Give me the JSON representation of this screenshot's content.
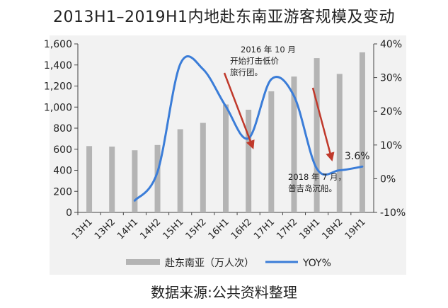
{
  "chart_data": {
    "type": "bar+line",
    "title": "2013H1–2019H1内地赴东南亚游客规模及变动",
    "categories": [
      "13H1",
      "13H2",
      "14H1",
      "14H2",
      "15H1",
      "15H2",
      "16H1",
      "16H2",
      "17H1",
      "17H2",
      "18H1",
      "18H2",
      "19H1"
    ],
    "series": [
      {
        "name": "赴东南亚（万人次）",
        "type": "bar",
        "axis": "left",
        "values": [
          630,
          625,
          590,
          640,
          790,
          850,
          1025,
          975,
          1150,
          1290,
          1465,
          1315,
          1520
        ]
      },
      {
        "name": "YOY%",
        "type": "line",
        "axis": "right",
        "values": [
          null,
          null,
          -6.5,
          2.0,
          34.0,
          32.5,
          21.5,
          12.0,
          29.5,
          24.5,
          3.0,
          2.5,
          3.6
        ]
      }
    ],
    "y_left": {
      "min": 0,
      "max": 1600,
      "ticks": [
        "0",
        "200",
        "400",
        "600",
        "800",
        "1,000",
        "1,200",
        "1,400",
        "1,600"
      ]
    },
    "y_right": {
      "min": -10,
      "max": 40,
      "ticks": [
        "-10%",
        "0%",
        "10%",
        "20%",
        "30%",
        "40%"
      ]
    },
    "annotations": {
      "note1": [
        "2016 年 10 月",
        "开始打击低价",
        "旅行团。"
      ],
      "note2": [
        "2018 年 7 月，",
        "普吉岛沉船。"
      ],
      "last_label": "3.6%"
    },
    "legend": {
      "bar_label": "赴东南亚（万人次）",
      "line_label": "YOY%"
    },
    "colors": {
      "bar": "#b4b4b4",
      "line": "#3b7dd8",
      "arrow": "#c0392b",
      "plot_bg": "#f2f2f2"
    }
  },
  "footer": "数据来源:公共资料整理"
}
